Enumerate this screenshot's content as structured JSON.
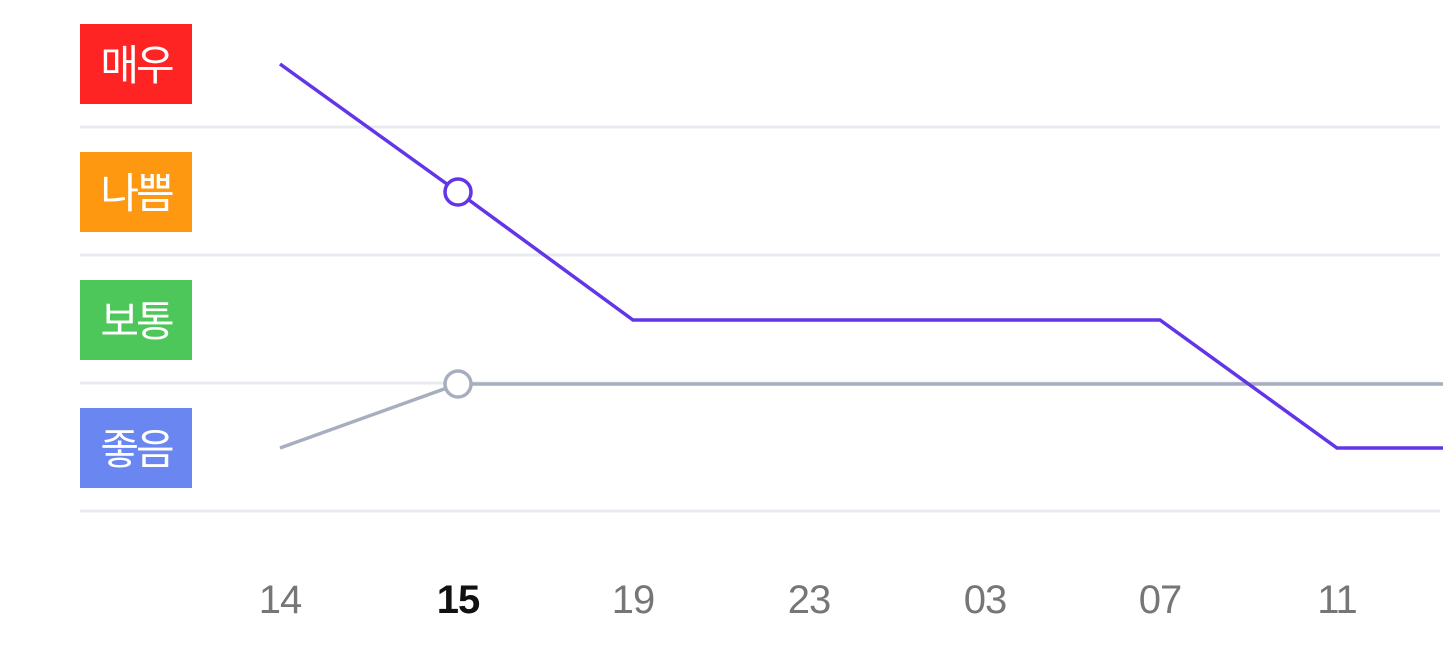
{
  "chart_data": {
    "type": "line",
    "title": "",
    "xlabel": "",
    "ylabel": "",
    "categories": [
      "14",
      "15",
      "19",
      "23",
      "03",
      "07",
      "11",
      ""
    ],
    "current_category": "15",
    "levels": [
      {
        "label": "매우",
        "color": "#ff2424"
      },
      {
        "label": "나쁨",
        "color": "#ff9811"
      },
      {
        "label": "보통",
        "color": "#4dc65a"
      },
      {
        "label": "좋음",
        "color": "#6a86f0"
      }
    ],
    "ylim": [
      0,
      4
    ],
    "grid": true,
    "series": [
      {
        "color": "#6236e8",
        "values": [
          3.5,
          2.5,
          1.5,
          1.5,
          1.5,
          1.5,
          0.5,
          0.5
        ]
      },
      {
        "color": "#a7aebf",
        "values": [
          0.5,
          1.0,
          1.0,
          1.0,
          1.0,
          1.0,
          1.0,
          1.0
        ]
      }
    ],
    "current_markers": true
  }
}
